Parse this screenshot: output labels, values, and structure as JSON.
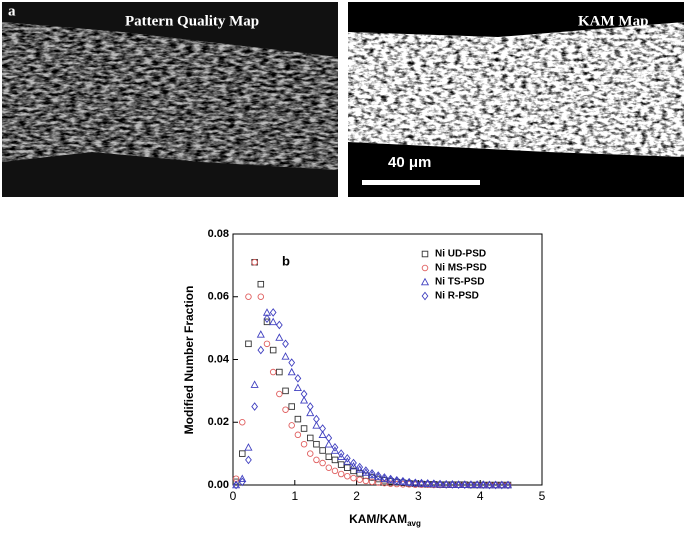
{
  "images": [
    {
      "label": "a",
      "title": "Pattern Quality Map"
    },
    {
      "title": "KAM Map",
      "scale_bar": "40 μm"
    }
  ],
  "chart_data": {
    "type": "scatter",
    "panel_label": "b",
    "x_label": "KAM/KAM",
    "x_label_subscript": "avg",
    "y_label": "Modified Number Fraction",
    "xlim": [
      0,
      5
    ],
    "xticks": [
      0,
      1,
      2,
      3,
      4,
      5
    ],
    "ylim": [
      0,
      0.08
    ],
    "yticks": [
      {
        "value": 0,
        "label": "0.00"
      },
      {
        "value": 0.02,
        "label": "0.02"
      },
      {
        "value": 0.04,
        "label": "0.04"
      },
      {
        "value": 0.06,
        "label": "0.06"
      },
      {
        "value": 0.08,
        "label": "0.08"
      }
    ],
    "legend": "upper right",
    "x": [
      0.05,
      0.15,
      0.25,
      0.35,
      0.45,
      0.55,
      0.65,
      0.75,
      0.85,
      0.95,
      1.05,
      1.15,
      1.25,
      1.35,
      1.45,
      1.55,
      1.65,
      1.75,
      1.85,
      1.95,
      2.05,
      2.15,
      2.25,
      2.35,
      2.45,
      2.55,
      2.65,
      2.75,
      2.85,
      2.95,
      3.05,
      3.15,
      3.25,
      3.35,
      3.45,
      3.55,
      3.65,
      3.75,
      3.85,
      3.95,
      4.05,
      4.15,
      4.25,
      4.35,
      4.45
    ],
    "series": [
      {
        "name": "Ni UD-PSD",
        "color": "#333333",
        "marker": "square",
        "values": [
          0.001,
          0.01,
          0.045,
          0.071,
          0.064,
          0.052,
          0.043,
          0.036,
          0.03,
          0.025,
          0.021,
          0.018,
          0.015,
          0.013,
          0.011,
          0.009,
          0.008,
          0.0065,
          0.0055,
          0.0045,
          0.0037,
          0.003,
          0.0024,
          0.0019,
          0.0015,
          0.0012,
          0.0009,
          0.0007,
          0.0005,
          0.0004,
          0.0003,
          0.0002,
          0.0002,
          0.0001,
          0.0001,
          0.0001,
          0.0001,
          0.0001,
          0,
          0,
          0,
          0,
          0,
          0,
          0
        ]
      },
      {
        "name": "Ni MS-PSD",
        "color": "#e06060",
        "marker": "circle",
        "values": [
          0.002,
          0.02,
          0.06,
          0.071,
          0.06,
          0.045,
          0.036,
          0.029,
          0.024,
          0.019,
          0.016,
          0.013,
          0.01,
          0.008,
          0.007,
          0.0055,
          0.0045,
          0.0035,
          0.0028,
          0.0022,
          0.0017,
          0.0013,
          0.001,
          0.0008,
          0.0006,
          0.0004,
          0.0003,
          0.0002,
          0.0002,
          0.0001,
          0.0001,
          0.0001,
          0,
          0,
          0,
          0,
          0,
          0,
          0,
          0,
          0,
          0,
          0,
          0,
          0
        ]
      },
      {
        "name": "Ni TS-PSD",
        "color": "#4040c0",
        "marker": "triangle",
        "values": [
          0,
          0.002,
          0.012,
          0.032,
          0.048,
          0.055,
          0.052,
          0.047,
          0.041,
          0.036,
          0.031,
          0.027,
          0.023,
          0.019,
          0.016,
          0.013,
          0.011,
          0.009,
          0.0075,
          0.006,
          0.005,
          0.004,
          0.0032,
          0.0026,
          0.002,
          0.0016,
          0.0012,
          0.001,
          0.0008,
          0.0006,
          0.0005,
          0.0004,
          0.0003,
          0.0002,
          0.0002,
          0.0001,
          0.0001,
          0.0001,
          0.0001,
          0.0001,
          0,
          0,
          0,
          0,
          0
        ]
      },
      {
        "name": "Ni R-PSD",
        "color": "#4040c0",
        "marker": "diamond",
        "values": [
          0,
          0.001,
          0.008,
          0.025,
          0.043,
          0.053,
          0.055,
          0.051,
          0.045,
          0.039,
          0.034,
          0.029,
          0.025,
          0.021,
          0.018,
          0.015,
          0.012,
          0.01,
          0.0085,
          0.007,
          0.0057,
          0.0046,
          0.0037,
          0.003,
          0.0024,
          0.0019,
          0.0015,
          0.0012,
          0.0009,
          0.0007,
          0.0006,
          0.0005,
          0.0004,
          0.0003,
          0.0002,
          0.0002,
          0.0001,
          0.0001,
          0.0001,
          0.0001,
          0.0001,
          0,
          0,
          0,
          0
        ]
      }
    ]
  }
}
